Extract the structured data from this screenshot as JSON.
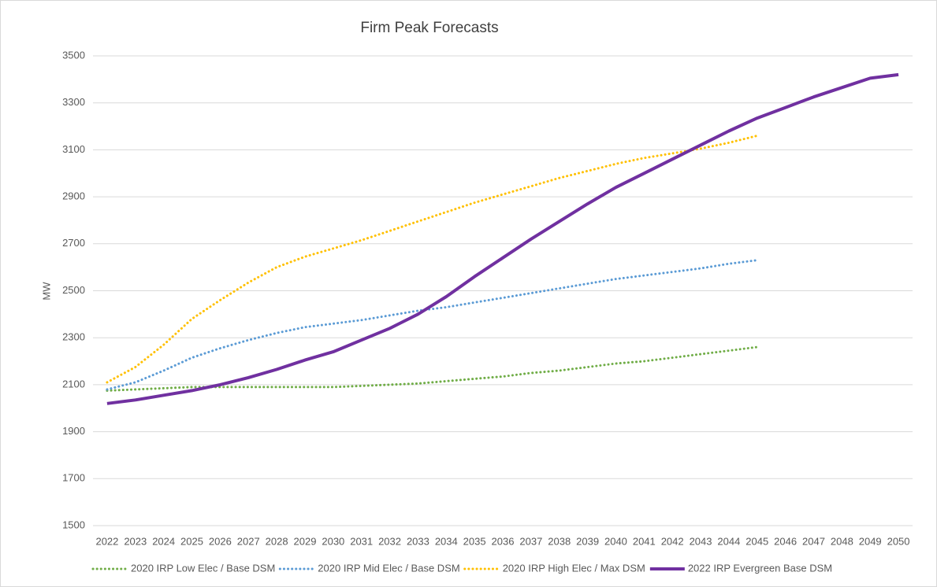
{
  "chart_data": {
    "type": "line",
    "title": "Firm Peak Forecasts",
    "y_label": "MW",
    "categories": [
      "2022",
      "2023",
      "2024",
      "2025",
      "2026",
      "2027",
      "2028",
      "2029",
      "2030",
      "2031",
      "2032",
      "2033",
      "2034",
      "2035",
      "2036",
      "2037",
      "2038",
      "2039",
      "2040",
      "2041",
      "2042",
      "2043",
      "2044",
      "2045",
      "2046",
      "2047",
      "2048",
      "2049",
      "2050"
    ],
    "ylim": [
      1500,
      3500
    ],
    "yticks": [
      1500,
      1700,
      1900,
      2100,
      2300,
      2500,
      2700,
      2900,
      3100,
      3300,
      3500
    ],
    "grid": true,
    "legend": "bottom",
    "series": [
      {
        "name": "2020 IRP Low Elec / Base DSM",
        "color": "#70ad47",
        "style": "dotted",
        "values": [
          2075,
          2080,
          2085,
          2090,
          2090,
          2090,
          2090,
          2090,
          2090,
          2095,
          2100,
          2105,
          2115,
          2125,
          2135,
          2150,
          2160,
          2175,
          2190,
          2200,
          2215,
          2230,
          2245,
          2260,
          null,
          null,
          null,
          null,
          null
        ]
      },
      {
        "name": "2020 IRP Mid Elec / Base DSM",
        "color": "#5b9bd5",
        "style": "dotted",
        "values": [
          2080,
          2110,
          2160,
          2215,
          2255,
          2290,
          2320,
          2345,
          2360,
          2375,
          2395,
          2415,
          2430,
          2450,
          2470,
          2490,
          2510,
          2530,
          2550,
          2565,
          2580,
          2595,
          2615,
          2630,
          null,
          null,
          null,
          null,
          null
        ]
      },
      {
        "name": "2020 IRP High Elec / Max DSM",
        "color": "#ffc000",
        "style": "dotted",
        "values": [
          2110,
          2175,
          2270,
          2380,
          2460,
          2535,
          2600,
          2645,
          2680,
          2715,
          2755,
          2795,
          2835,
          2875,
          2910,
          2945,
          2980,
          3010,
          3040,
          3065,
          3085,
          3105,
          3130,
          3160,
          null,
          null,
          null,
          null,
          null
        ]
      },
      {
        "name": "2022 IRP Evergreen Base DSM",
        "color": "#7030a0",
        "style": "solid",
        "values": [
          2020,
          2035,
          2055,
          2075,
          2100,
          2130,
          2165,
          2205,
          2240,
          2290,
          2340,
          2400,
          2475,
          2560,
          2640,
          2720,
          2795,
          2870,
          2940,
          3000,
          3060,
          3120,
          3180,
          3235,
          3280,
          3325,
          3365,
          3405,
          3420
        ]
      }
    ]
  }
}
